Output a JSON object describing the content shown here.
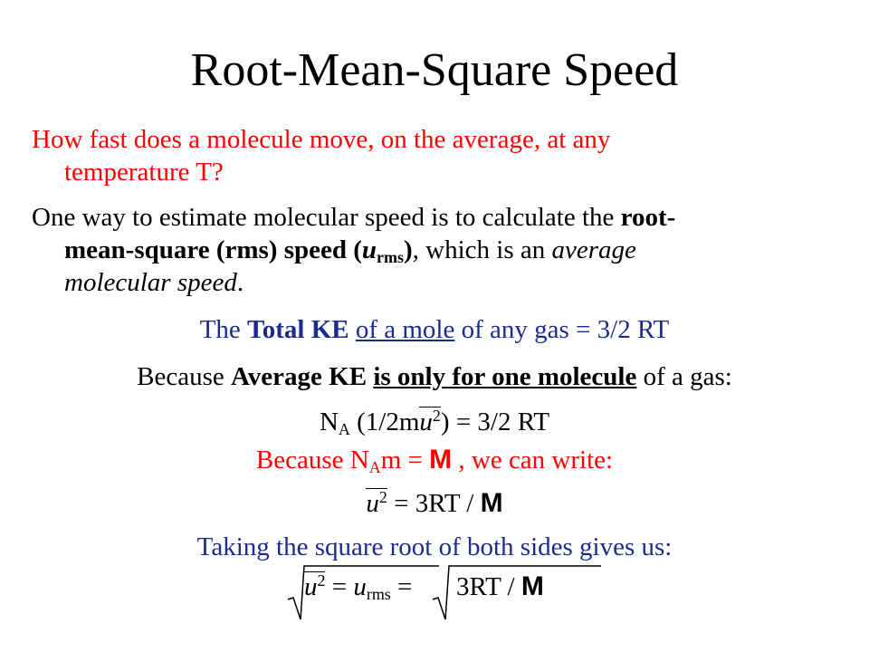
{
  "title": "Root-Mean-Square Speed",
  "question": {
    "line1": "How fast does a molecule move, on the average, at any",
    "line2": "temperature T?"
  },
  "para2": {
    "a": "One way to estimate molecular speed is to calculate the ",
    "bold1": "root-",
    "bold2": "mean-square (rms) speed (",
    "u": "u",
    "sub": "rms",
    "close": ")",
    "b": ", which is an ",
    "italic1": "average",
    "italic2": "molecular speed",
    "period": "."
  },
  "eq1": {
    "a": "The ",
    "bold": "Total KE",
    "space": " ",
    "under": "of a mole",
    "rest": " of any gas = 3/2 RT"
  },
  "eq2": {
    "a": "Because ",
    "bold": "Average KE",
    "space": " ",
    "under": "is only for one molecule",
    "rest": " of a gas:"
  },
  "eq3": {
    "n": "N",
    "nsub": "A",
    "open": " (1/2m",
    "u": "u",
    "sup": "2",
    "rest": ") = 3/2 RT"
  },
  "eq4": {
    "a": "Because N",
    "sub": "A",
    "m": "m = ",
    "M": "M",
    "rest": " , we can write:"
  },
  "eq5": {
    "u": "u",
    "sup": "2",
    "mid": " = 3RT / ",
    "M": "M"
  },
  "eq6": "Taking the square root of both sides gives us:",
  "eq7": {
    "u": "u",
    "sup": "2",
    "eq": " = ",
    "u2": "u",
    "sub": "rms",
    "eq2": " = ",
    "rhs": "3RT / ",
    "M": "M"
  }
}
